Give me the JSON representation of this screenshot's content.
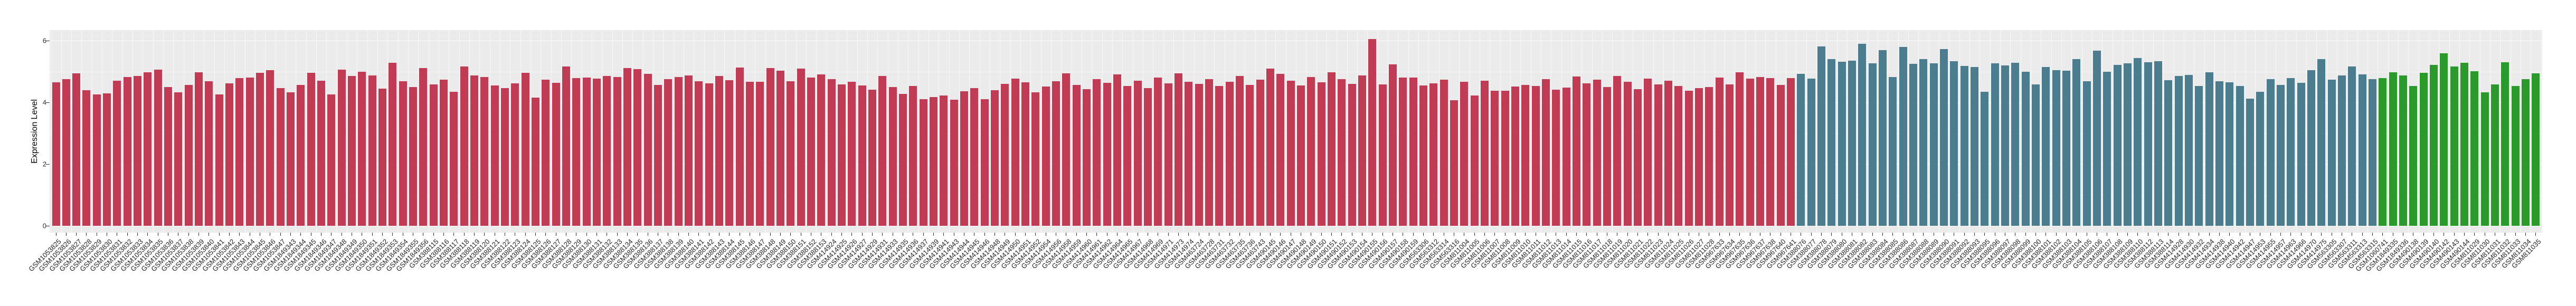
{
  "chart_data": {
    "type": "bar",
    "title": "",
    "xlabel": "",
    "ylabel": "Expression Level",
    "ylim": [
      0,
      6.36
    ],
    "yticks": [
      0,
      2,
      4,
      6
    ],
    "grid": true,
    "legend_position": "none",
    "panel_bg": "#ebebeb",
    "grid_color": "#ffffff",
    "tick_color": "#333333",
    "groups": [
      {
        "name": "group-red",
        "color": "#c23b55",
        "ids": [
          "GSM1053825",
          "GSM1053826",
          "GSM1053827",
          "GSM1053828",
          "GSM1053829",
          "GSM1053830",
          "GSM1053831",
          "GSM1053832",
          "GSM1053833",
          "GSM1053834",
          "GSM1053835",
          "GSM1053836",
          "GSM1053837",
          "GSM1053838",
          "GSM1053839",
          "GSM1053840",
          "GSM1053841",
          "GSM1053842",
          "GSM1053843",
          "GSM1053844",
          "GSM1053845",
          "GSM1053846",
          "GSM1053847",
          "GSM1849343",
          "GSM1849344",
          "GSM1849345",
          "GSM1849346",
          "GSM1849347",
          "GSM1849348",
          "GSM1849349",
          "GSM1849350",
          "GSM1849351",
          "GSM1849352",
          "GSM1849353",
          "GSM1849354",
          "GSM1849355",
          "GSM1849356",
          "GSM388115",
          "GSM388116",
          "GSM388117",
          "GSM388118",
          "GSM388119",
          "GSM388120",
          "GSM388121",
          "GSM388122",
          "GSM388123",
          "GSM388124",
          "GSM388125",
          "GSM388126",
          "GSM388127",
          "GSM388128",
          "GSM388129",
          "GSM388130",
          "GSM388131",
          "GSM388132",
          "GSM388133",
          "GSM388134",
          "GSM388135",
          "GSM388136",
          "GSM388137",
          "GSM388138",
          "GSM388139",
          "GSM388140",
          "GSM388141",
          "GSM388142",
          "GSM388143",
          "GSM388144",
          "GSM388145",
          "GSM388146",
          "GSM388147",
          "GSM388148",
          "GSM388149",
          "GSM388150",
          "GSM388151",
          "GSM388152",
          "GSM388153",
          "GSM414924",
          "GSM414925",
          "GSM414926",
          "GSM414927",
          "GSM414929",
          "GSM414931",
          "GSM414933",
          "GSM414935",
          "GSM414936",
          "GSM414937",
          "GSM414939",
          "GSM414941",
          "GSM414943",
          "GSM414944",
          "GSM414945",
          "GSM414946",
          "GSM414948",
          "GSM414949",
          "GSM414950",
          "GSM414951",
          "GSM414952",
          "GSM414954",
          "GSM414956",
          "GSM414958",
          "GSM414959",
          "GSM414960",
          "GSM414961",
          "GSM414962",
          "GSM414964",
          "GSM414965",
          "GSM414967",
          "GSM414968",
          "GSM414969",
          "GSM414971",
          "GSM414973",
          "GSM414974",
          "GSM463724",
          "GSM463728",
          "GSM463731",
          "GSM463732",
          "GSM463735",
          "GSM463736",
          "GSM463743",
          "GSM490145",
          "GSM490146",
          "GSM490147",
          "GSM490148",
          "GSM490149",
          "GSM490150",
          "GSM490151",
          "GSM490152",
          "GSM490153",
          "GSM490154",
          "GSM490155",
          "GSM490156",
          "GSM490157",
          "GSM490158",
          "GSM490159",
          "GSM563306",
          "GSM563312",
          "GSM563314",
          "GSM563316",
          "GSM811004",
          "GSM811005",
          "GSM811006",
          "GSM811007",
          "GSM811008",
          "GSM811009",
          "GSM811010",
          "GSM811011",
          "GSM811012",
          "GSM811013",
          "GSM811014",
          "GSM811015",
          "GSM811016",
          "GSM811017",
          "GSM811018",
          "GSM811019",
          "GSM811020",
          "GSM811021",
          "GSM811022",
          "GSM811023",
          "GSM811024",
          "GSM811025",
          "GSM811026",
          "GSM811027",
          "GSM811028",
          "GSM967633",
          "GSM967634",
          "GSM967635",
          "GSM967636",
          "GSM967637",
          "GSM967638",
          "GSM967640",
          "GSM967641"
        ],
        "values": [
          4.65,
          4.75,
          4.95,
          4.39,
          4.26,
          4.29,
          4.7,
          4.82,
          4.85,
          4.97,
          5.07,
          4.49,
          4.33,
          4.56,
          4.97,
          4.69,
          4.25,
          4.61,
          4.79,
          4.81,
          4.96,
          5.05,
          4.47,
          4.33,
          4.57,
          4.96,
          4.7,
          4.25,
          5.07,
          4.86,
          5.0,
          4.88,
          4.44,
          5.29,
          4.69,
          4.5,
          5.11,
          4.59,
          4.73,
          4.35,
          5.17,
          4.87,
          4.82,
          4.55,
          4.47,
          4.62,
          4.96,
          4.15,
          4.73,
          4.63,
          5.17,
          4.79,
          4.81,
          4.77,
          4.85,
          4.83,
          5.12,
          5.08,
          4.92,
          4.57,
          4.75,
          4.83,
          4.87,
          4.69,
          4.61,
          4.86,
          4.72,
          5.13,
          4.66,
          4.67,
          5.11,
          5.03,
          4.69,
          5.1,
          4.8,
          4.9,
          4.75,
          4.58,
          4.66,
          4.55,
          4.42,
          4.86,
          4.5,
          4.28,
          4.53,
          4.1,
          4.17,
          4.23,
          4.08,
          4.36,
          4.47,
          4.11,
          4.4,
          4.6,
          4.77,
          4.65,
          4.33,
          4.51,
          4.69,
          4.95,
          4.57,
          4.43,
          4.75,
          4.63,
          4.9,
          4.53,
          4.71,
          4.47,
          4.8,
          4.61,
          4.95,
          4.67,
          4.6,
          4.75,
          4.53,
          4.67,
          4.85,
          4.57,
          4.73,
          5.1,
          4.93,
          4.7,
          4.55,
          4.83,
          4.65,
          4.97,
          4.75,
          4.6,
          4.87,
          6.05,
          4.58,
          5.23,
          4.81,
          4.81,
          4.55,
          4.62,
          4.74,
          4.07,
          4.66,
          4.23,
          4.71,
          4.37,
          4.37,
          4.51,
          4.57,
          4.54,
          4.76,
          4.41,
          4.48,
          4.84,
          4.61,
          4.73,
          4.5,
          4.85,
          4.67,
          4.43,
          4.77,
          4.59,
          4.71,
          4.53,
          4.37,
          4.47,
          4.49,
          4.81,
          4.58,
          4.98,
          4.77,
          4.82,
          4.78,
          4.56,
          4.79
        ]
      },
      {
        "name": "group-blue",
        "color": "#4c7d8e",
        "ids": [
          "GSM388076",
          "GSM388077",
          "GSM388078",
          "GSM388079",
          "GSM388080",
          "GSM388081",
          "GSM388082",
          "GSM388083",
          "GSM388084",
          "GSM388085",
          "GSM388086",
          "GSM388087",
          "GSM388088",
          "GSM388089",
          "GSM388090",
          "GSM388091",
          "GSM388092",
          "GSM388093",
          "GSM388095",
          "GSM388096",
          "GSM388097",
          "GSM388098",
          "GSM388099",
          "GSM388100",
          "GSM388101",
          "GSM388102",
          "GSM388103",
          "GSM388104",
          "GSM388105",
          "GSM388106",
          "GSM388107",
          "GSM388108",
          "GSM388109",
          "GSM388110",
          "GSM388112",
          "GSM388113",
          "GSM388114",
          "GSM414928",
          "GSM414930",
          "GSM414932",
          "GSM414934",
          "GSM414938",
          "GSM414940",
          "GSM414942",
          "GSM414947",
          "GSM414953",
          "GSM414955",
          "GSM414957",
          "GSM414963",
          "GSM414966",
          "GSM414970",
          "GSM414975",
          "GSM563305",
          "GSM563307",
          "GSM563311",
          "GSM563313",
          "GSM563315"
        ],
        "values": [
          4.92,
          4.77,
          5.82,
          5.4,
          5.31,
          5.36,
          5.9,
          5.27,
          5.7,
          4.83,
          5.8,
          5.25,
          5.41,
          5.27,
          5.73,
          5.33,
          5.18,
          5.15,
          4.34,
          5.27,
          5.19,
          5.28,
          4.99,
          4.58,
          5.14,
          5.04,
          5.03,
          5.41,
          4.69,
          5.67,
          4.99,
          5.22,
          5.27,
          5.44,
          5.3,
          5.33,
          4.72,
          4.86,
          4.89,
          4.53,
          4.97,
          4.69,
          4.65,
          4.53,
          4.12,
          4.34,
          4.76,
          4.56,
          4.79,
          4.63,
          5.05,
          5.41,
          4.74,
          4.88,
          5.16,
          4.91,
          4.76
        ]
      },
      {
        "name": "group-green",
        "color": "#2a9a2a",
        "ids": [
          "GSM1060741",
          "GSM1849335",
          "GSM1849336",
          "GSM490138",
          "GSM490139",
          "GSM490140",
          "GSM490142",
          "GSM490143",
          "GSM490144",
          "GSM811029",
          "GSM811030",
          "GSM811031",
          "GSM811032",
          "GSM811033",
          "GSM811034",
          "GSM811035"
        ],
        "values": [
          4.79,
          4.98,
          4.87,
          4.53,
          4.96,
          5.22,
          5.6,
          5.16,
          5.28,
          5.01,
          4.32,
          4.59,
          5.3,
          4.54,
          4.76,
          4.95
        ]
      }
    ]
  }
}
